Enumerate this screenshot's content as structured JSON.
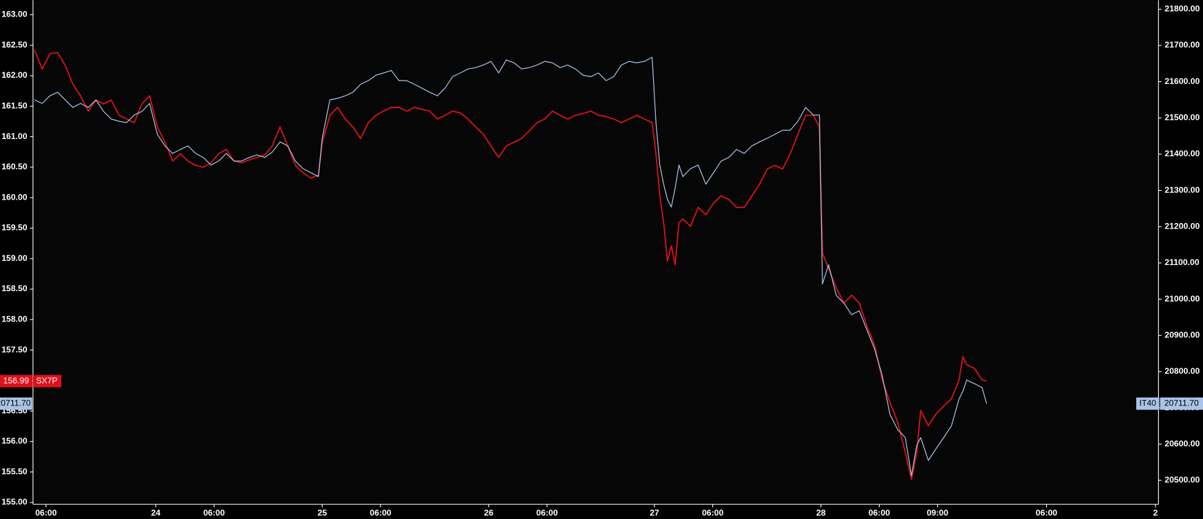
{
  "chart_data": {
    "type": "line",
    "x": [
      45,
      55,
      65,
      75,
      85,
      95,
      105,
      115,
      125,
      135,
      145,
      155,
      165,
      175,
      185,
      195,
      205,
      215,
      225,
      235,
      245,
      255,
      265,
      275,
      285,
      295,
      305,
      315,
      325,
      335,
      345,
      355,
      365,
      375,
      385,
      395,
      405,
      415,
      420,
      430,
      440,
      450,
      460,
      470,
      480,
      490,
      500,
      510,
      520,
      530,
      540,
      550,
      560,
      570,
      580,
      590,
      600,
      610,
      620,
      630,
      640,
      650,
      660,
      670,
      680,
      690,
      700,
      710,
      720,
      730,
      740,
      750,
      760,
      770,
      780,
      790,
      800,
      810,
      820,
      830,
      840,
      850,
      855,
      860,
      865,
      870,
      875,
      880,
      885,
      890,
      900,
      910,
      920,
      930,
      940,
      950,
      960,
      970,
      980,
      990,
      1000,
      1010,
      1020,
      1030,
      1040,
      1050,
      1060,
      1068,
      1072,
      1080,
      1090,
      1100,
      1110,
      1120,
      1130,
      1140,
      1150,
      1160,
      1170,
      1180,
      1188,
      1195,
      1200,
      1210,
      1220,
      1230,
      1240,
      1250,
      1255,
      1260,
      1270,
      1280,
      1286
    ],
    "xlim": [
      43,
      1510
    ],
    "xticks": [
      {
        "value": 60,
        "label": "06:00"
      },
      {
        "value": 203,
        "label": "24"
      },
      {
        "value": 279,
        "label": "06:00"
      },
      {
        "value": 420,
        "label": "25"
      },
      {
        "value": 496,
        "label": "06:00"
      },
      {
        "value": 637,
        "label": "26"
      },
      {
        "value": 713,
        "label": "06:00"
      },
      {
        "value": 853,
        "label": "27"
      },
      {
        "value": 929,
        "label": "06:00"
      },
      {
        "value": 1070,
        "label": "28"
      },
      {
        "value": 1146,
        "label": "06:00"
      },
      {
        "value": 1222,
        "label": "09:00"
      },
      {
        "value": 1364,
        "label": "06:00"
      },
      {
        "value": 1506,
        "label": "2"
      }
    ],
    "ylim": [
      154.97,
      163.24
    ],
    "yticks": [
      {
        "value": 155,
        "label": "155.00"
      },
      {
        "value": 155.5,
        "label": "155.50"
      },
      {
        "value": 156,
        "label": "156.00"
      },
      {
        "value": 156.5,
        "label": "156.50"
      },
      {
        "value": 157,
        "label": "157.00"
      },
      {
        "value": 157.5,
        "label": "157.50"
      },
      {
        "value": 158,
        "label": "158.00"
      },
      {
        "value": 158.5,
        "label": "158.50"
      },
      {
        "value": 159,
        "label": "159.00"
      },
      {
        "value": 159.5,
        "label": "159.50"
      },
      {
        "value": 160,
        "label": "160.00"
      },
      {
        "value": 160.5,
        "label": "160.50"
      },
      {
        "value": 161,
        "label": "161.00"
      },
      {
        "value": 161.5,
        "label": "161.50"
      },
      {
        "value": 162,
        "label": "162.00"
      },
      {
        "value": 162.5,
        "label": "162.50"
      },
      {
        "value": 163,
        "label": "163.00"
      }
    ],
    "y2lim": [
      20434,
      21825
    ],
    "y2ticks": [
      {
        "value": 20500,
        "label": "20500.00"
      },
      {
        "value": 20600,
        "label": "20600.00"
      },
      {
        "value": 20700,
        "label": "20700.00"
      },
      {
        "value": 20800,
        "label": "20800.00"
      },
      {
        "value": 20900,
        "label": "20900.00"
      },
      {
        "value": 21000,
        "label": "21000.00"
      },
      {
        "value": 21100,
        "label": "21100.00"
      },
      {
        "value": 21200,
        "label": "21200.00"
      },
      {
        "value": 21300,
        "label": "21300.00"
      },
      {
        "value": 21400,
        "label": "21400.00"
      },
      {
        "value": 21500,
        "label": "21500.00"
      },
      {
        "value": 21600,
        "label": "21600.00"
      },
      {
        "value": 21700,
        "label": "21700.00"
      },
      {
        "value": 21800,
        "label": "21800.00"
      }
    ],
    "series": [
      {
        "name": "SX7P",
        "color": "#e0101c",
        "last_label": "156.99",
        "values": [
          162.42,
          162.11,
          162.36,
          162.38,
          162.17,
          161.86,
          161.67,
          161.42,
          161.6,
          161.54,
          161.6,
          161.35,
          161.29,
          161.23,
          161.54,
          161.67,
          161.16,
          160.91,
          160.6,
          160.72,
          160.6,
          160.53,
          160.5,
          160.57,
          160.72,
          160.79,
          160.6,
          160.57,
          160.62,
          160.66,
          160.7,
          160.85,
          161.16,
          160.85,
          160.53,
          160.41,
          160.32,
          160.37,
          160.91,
          161.35,
          161.48,
          161.29,
          161.16,
          160.97,
          161.23,
          161.35,
          161.42,
          161.48,
          161.48,
          161.42,
          161.48,
          161.45,
          161.42,
          161.29,
          161.35,
          161.42,
          161.39,
          161.29,
          161.16,
          161.04,
          160.85,
          160.66,
          160.85,
          160.91,
          160.97,
          161.1,
          161.23,
          161.29,
          161.42,
          161.35,
          161.29,
          161.35,
          161.38,
          161.42,
          161.35,
          161.33,
          161.29,
          161.23,
          161.29,
          161.35,
          161.29,
          161.23,
          160.72,
          160.03,
          159.59,
          158.96,
          159.21,
          158.9,
          159.59,
          159.65,
          159.53,
          159.84,
          159.72,
          159.91,
          160.03,
          159.97,
          159.84,
          159.84,
          160.03,
          160.22,
          160.47,
          160.53,
          160.47,
          160.72,
          161.04,
          161.35,
          161.35,
          161.16,
          159.09,
          158.84,
          158.52,
          158.27,
          158.4,
          158.27,
          157.89,
          157.58,
          157.01,
          156.64,
          156.32,
          155.82,
          155.38,
          155.82,
          156.51,
          156.26,
          156.45,
          156.58,
          156.7,
          157.01,
          157.39,
          157.26,
          157.2,
          157.01,
          156.99
        ]
      },
      {
        "name": "IT40",
        "color": "#a9c4e8",
        "axis": "y2",
        "last_label": "20711.70",
        "values": [
          21550,
          21540,
          21561,
          21571,
          21550,
          21529,
          21540,
          21529,
          21550,
          21518,
          21497,
          21491,
          21487,
          21508,
          21518,
          21540,
          21455,
          21423,
          21402,
          21413,
          21423,
          21402,
          21391,
          21370,
          21381,
          21402,
          21381,
          21381,
          21391,
          21398,
          21391,
          21406,
          21434,
          21423,
          21381,
          21360,
          21349,
          21338,
          21444,
          21550,
          21554,
          21561,
          21571,
          21593,
          21603,
          21618,
          21624,
          21631,
          21603,
          21603,
          21593,
          21582,
          21571,
          21561,
          21582,
          21614,
          21624,
          21635,
          21639,
          21646,
          21656,
          21624,
          21660,
          21652,
          21635,
          21639,
          21646,
          21656,
          21652,
          21639,
          21646,
          21635,
          21618,
          21614,
          21624,
          21603,
          21614,
          21646,
          21656,
          21652,
          21656,
          21667,
          21487,
          21370,
          21317,
          21275,
          21254,
          21307,
          21370,
          21338,
          21360,
          21370,
          21317,
          21349,
          21381,
          21391,
          21413,
          21402,
          21423,
          21434,
          21444,
          21455,
          21466,
          21466,
          21491,
          21529,
          21508,
          21508,
          21042,
          21095,
          21010,
          20989,
          20957,
          20968,
          20915,
          20862,
          20788,
          20682,
          20640,
          20618,
          20513,
          20597,
          20618,
          20555,
          20587,
          20618,
          20650,
          20724,
          20746,
          20777,
          20767,
          20756,
          20711.7
        ]
      }
    ]
  }
}
